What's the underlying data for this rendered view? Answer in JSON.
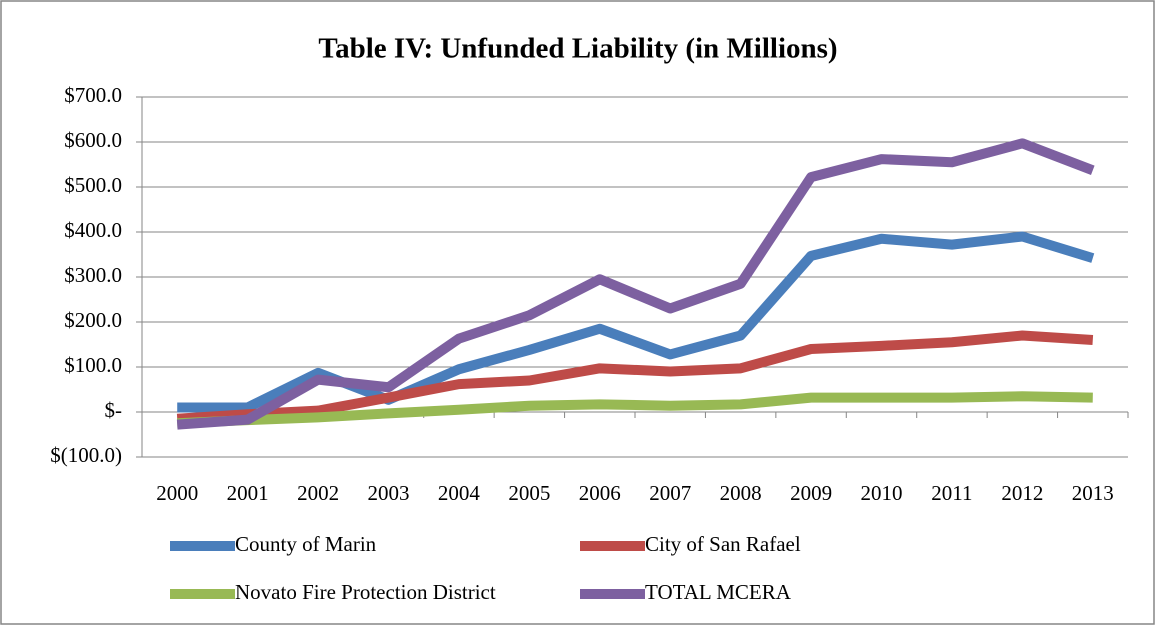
{
  "chart_data": {
    "type": "line",
    "title": "Table IV: Unfunded Liability (in Millions)",
    "categories": [
      "2000",
      "2001",
      "2002",
      "2003",
      "2004",
      "2005",
      "2006",
      "2007",
      "2008",
      "2009",
      "2010",
      "2011",
      "2012",
      "2013"
    ],
    "series": [
      {
        "name": "County of Marin",
        "color": "#4a7ebb",
        "values": [
          10,
          10,
          87,
          27,
          95,
          138,
          185,
          128,
          170,
          347,
          385,
          372,
          390,
          342
        ]
      },
      {
        "name": "City of San Rafael",
        "color": "#be4b48",
        "values": [
          -15,
          -5,
          3,
          32,
          62,
          70,
          97,
          90,
          97,
          140,
          147,
          155,
          170,
          160
        ]
      },
      {
        "name": "Novato Fire Protection District",
        "color": "#98b954",
        "values": [
          -25,
          -18,
          -12,
          -3,
          5,
          14,
          17,
          14,
          17,
          32,
          32,
          32,
          35,
          32
        ]
      },
      {
        "name": "TOTAL MCERA",
        "color": "#7d60a0",
        "values": [
          -28,
          -17,
          72,
          55,
          163,
          215,
          295,
          230,
          285,
          522,
          562,
          555,
          597,
          537
        ]
      }
    ],
    "ylim": [
      -100,
      700
    ],
    "yticks": [
      {
        "value": -100,
        "label": "$(100.0)"
      },
      {
        "value": 0,
        "label": "$-"
      },
      {
        "value": 100,
        "label": "$100.0"
      },
      {
        "value": 200,
        "label": "$200.0"
      },
      {
        "value": 300,
        "label": "$300.0"
      },
      {
        "value": 400,
        "label": "$400.0"
      },
      {
        "value": 500,
        "label": "$500.0"
      },
      {
        "value": 600,
        "label": "$600.0"
      },
      {
        "value": 700,
        "label": "$700.0"
      }
    ],
    "grid": true,
    "legend": "bottom"
  }
}
